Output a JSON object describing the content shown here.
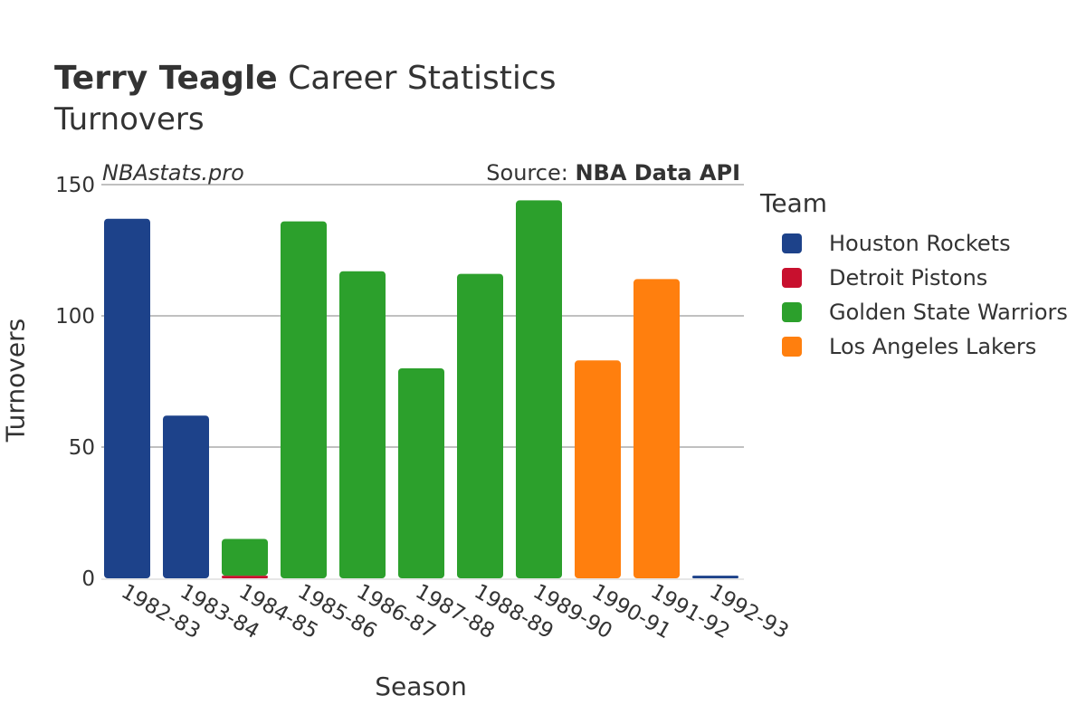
{
  "header": {
    "title_bold": "Terry Teagle",
    "title_rest": " Career Statistics",
    "subtitle": "Turnovers"
  },
  "watermark": "NBAstats.pro",
  "source": {
    "prefix": "Source: ",
    "name": "NBA Data API"
  },
  "legend": {
    "title": "Team",
    "items": [
      {
        "label": "Houston Rockets",
        "color": "#1d428a"
      },
      {
        "label": "Detroit Pistons",
        "color": "#c8102e"
      },
      {
        "label": "Golden State Warriors",
        "color": "#2ca02c"
      },
      {
        "label": "Los Angeles Lakers",
        "color": "#ff7f0e"
      }
    ]
  },
  "chart_data": {
    "type": "bar",
    "stacked": true,
    "title": "Terry Teagle Career Statistics",
    "subtitle": "Turnovers",
    "xlabel": "Season",
    "ylabel": "Turnovers",
    "ylim": [
      0,
      150
    ],
    "yticks": [
      0,
      50,
      100,
      150
    ],
    "grid": true,
    "legend_position": "right",
    "categories": [
      "1982-83",
      "1983-84",
      "1984-85",
      "1985-86",
      "1986-87",
      "1987-88",
      "1988-89",
      "1989-90",
      "1990-91",
      "1991-92",
      "1992-93"
    ],
    "series": [
      {
        "name": "Houston Rockets",
        "color": "#1d428a",
        "values": [
          137,
          62,
          0,
          0,
          0,
          0,
          0,
          0,
          0,
          0,
          1
        ]
      },
      {
        "name": "Detroit Pistons",
        "color": "#c8102e",
        "values": [
          0,
          0,
          1,
          0,
          0,
          0,
          0,
          0,
          0,
          0,
          0
        ]
      },
      {
        "name": "Golden State Warriors",
        "color": "#2ca02c",
        "values": [
          0,
          0,
          14,
          136,
          117,
          80,
          116,
          144,
          0,
          0,
          0
        ]
      },
      {
        "name": "Los Angeles Lakers",
        "color": "#ff7f0e",
        "values": [
          0,
          0,
          0,
          0,
          0,
          0,
          0,
          0,
          83,
          114,
          0
        ]
      }
    ]
  }
}
